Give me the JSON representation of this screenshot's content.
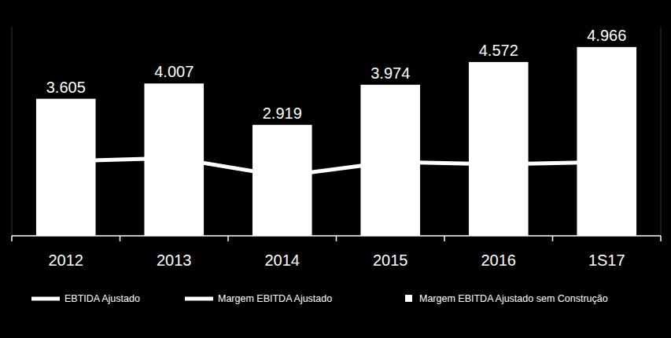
{
  "chart_data": {
    "type": "bar",
    "categories": [
      "2012",
      "2013",
      "2014",
      "2015",
      "2016",
      "1S17"
    ],
    "series": [
      {
        "name": "EBTIDA Ajustado",
        "type": "bar",
        "color": "#ffffff",
        "data_labels": true,
        "values": [
          3605,
          4007,
          2919,
          3974,
          4572,
          4966
        ],
        "value_labels": [
          "3.605",
          "4.007",
          "2.919",
          "3.974",
          "4.572",
          "4.966"
        ]
      },
      {
        "name": "Margem EBITDA Ajustado",
        "type": "line",
        "color": "#ffffff",
        "axis": "y2",
        "line_style": "solid",
        "values": [
          35.7,
          37.2,
          28.6,
          35.3,
          34.2,
          35.3
        ]
      },
      {
        "name": "Margem EBITDA Ajustado sem Construção",
        "type": "scatter",
        "color": "#ffffff",
        "axis": "y2",
        "marker": "square",
        "values": [
          null,
          null,
          null,
          null,
          null,
          null
        ]
      }
    ],
    "ylim": [
      0,
      5500
    ],
    "y2lim": [
      0,
      100
    ],
    "grid": false,
    "legend": "bottom",
    "tick_labels": "x"
  }
}
